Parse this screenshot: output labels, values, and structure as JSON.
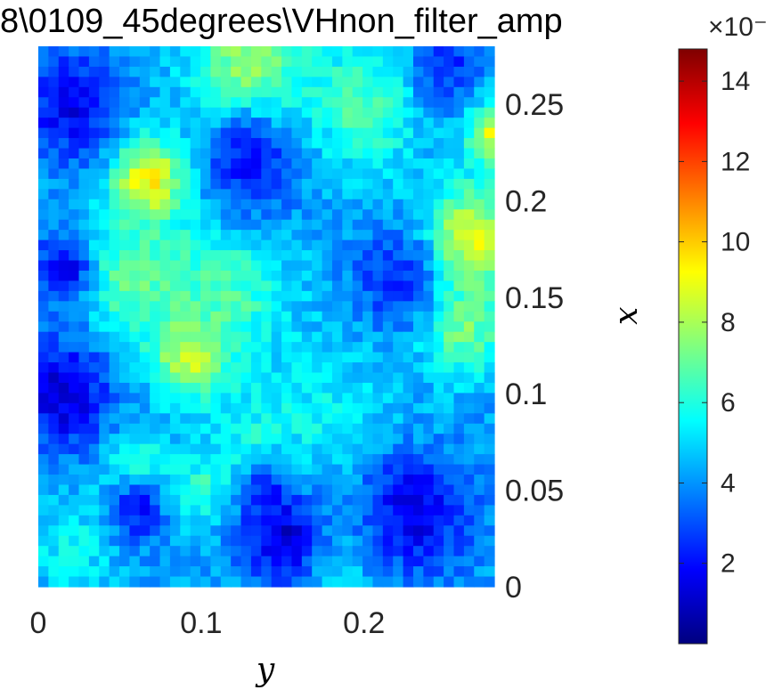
{
  "chart_data": {
    "type": "heatmap",
    "title": "8\\0109_45degrees\\VHnon_filter_amp",
    "xlabel": "y",
    "ylabel": "x",
    "x_range": [
      0,
      0.28
    ],
    "y_range": [
      0,
      0.28
    ],
    "x_ticks": [
      0,
      0.1,
      0.2
    ],
    "x_tick_labels": [
      "0",
      "0.1",
      "0.2"
    ],
    "y_ticks": [
      0,
      0.05,
      0.1,
      0.15,
      0.2,
      0.25
    ],
    "y_tick_labels": [
      "0",
      "0.05",
      "0.1",
      "0.15",
      "0.2",
      "0.25"
    ],
    "y_axis_location": "right",
    "grid": false,
    "grid_size": [
      45,
      53
    ],
    "colormap": "jet",
    "color_range": [
      0,
      14.8
    ],
    "colorbar": {
      "location": "right",
      "ticks": [
        2,
        4,
        6,
        8,
        10,
        12,
        14
      ],
      "tick_labels": [
        "2",
        "4",
        "6",
        "8",
        "10",
        "12",
        "14"
      ],
      "multiplier_label": "×10⁻"
    },
    "background_level": 4.2,
    "features": [
      {
        "y": 0.068,
        "x": 0.21,
        "peak": 9.8,
        "spread": 0.016
      },
      {
        "y": 0.095,
        "x": 0.123,
        "peak": 10.5,
        "spread": 0.015
      },
      {
        "y": 0.265,
        "x": 0.18,
        "peak": 9.0,
        "spread": 0.02
      },
      {
        "y": 0.13,
        "x": 0.268,
        "peak": 8.0,
        "spread": 0.025
      },
      {
        "y": 0.28,
        "x": 0.235,
        "peak": 9.0,
        "spread": 0.012
      },
      {
        "y": 0.06,
        "x": 0.16,
        "peak": 7.2,
        "spread": 0.022
      },
      {
        "y": 0.26,
        "x": 0.135,
        "peak": 7.4,
        "spread": 0.018
      },
      {
        "y": 0.11,
        "x": 0.15,
        "peak": 6.8,
        "spread": 0.03
      },
      {
        "y": 0.2,
        "x": 0.25,
        "peak": 6.6,
        "spread": 0.025
      },
      {
        "y": 0.06,
        "x": 0.06,
        "peak": 6.6,
        "spread": 0.015
      },
      {
        "y": 0.1,
        "x": 0.05,
        "peak": 6.4,
        "spread": 0.012
      },
      {
        "y": 0.135,
        "x": 0.07,
        "peak": 6.2,
        "spread": 0.02
      },
      {
        "y": 0.18,
        "x": 0.085,
        "peak": 5.6,
        "spread": 0.03
      },
      {
        "y": 0.23,
        "x": 0.06,
        "peak": 5.4,
        "spread": 0.02
      },
      {
        "y": 0.02,
        "x": 0.02,
        "peak": 5.6,
        "spread": 0.018
      },
      {
        "y": 0.17,
        "x": 0.01,
        "peak": 5.8,
        "spread": 0.03
      },
      {
        "y": 0.015,
        "x": 0.1,
        "peak": 1.2,
        "spread": 0.02
      },
      {
        "y": 0.02,
        "x": 0.25,
        "peak": 1.6,
        "spread": 0.02
      },
      {
        "y": 0.015,
        "x": 0.165,
        "peak": 1.5,
        "spread": 0.012
      },
      {
        "y": 0.15,
        "x": 0.025,
        "peak": 1.2,
        "spread": 0.02
      },
      {
        "y": 0.23,
        "x": 0.04,
        "peak": 1.5,
        "spread": 0.025
      },
      {
        "y": 0.13,
        "x": 0.22,
        "peak": 2.0,
        "spread": 0.02
      },
      {
        "y": 0.22,
        "x": 0.16,
        "peak": 2.4,
        "spread": 0.018
      },
      {
        "y": 0.06,
        "x": 0.04,
        "peak": 2.0,
        "spread": 0.012
      },
      {
        "y": 0.14,
        "x": 0.05,
        "peak": 2.2,
        "spread": 0.01
      },
      {
        "y": 0.25,
        "x": 0.27,
        "peak": 2.4,
        "spread": 0.015
      }
    ]
  }
}
